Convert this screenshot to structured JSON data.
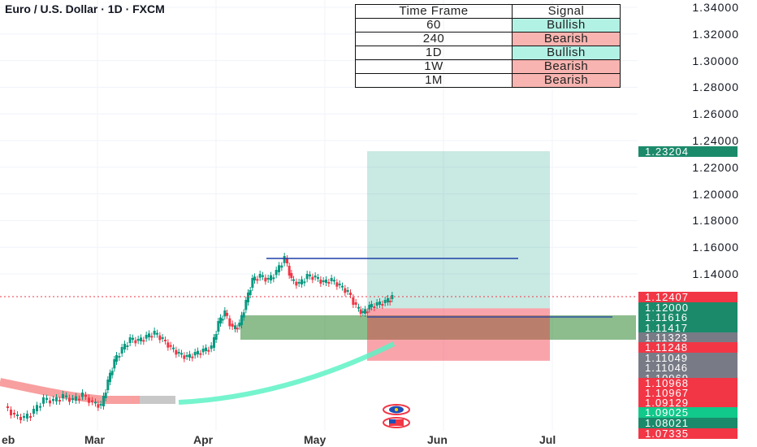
{
  "header": {
    "title": "Euro / U.S. Dollar · 1D · FXCM"
  },
  "signal_table": {
    "headers": [
      "Time Frame",
      "Signal"
    ],
    "rows": [
      {
        "tf": "60",
        "signal": "Bullish",
        "color": "#b2f2e5"
      },
      {
        "tf": "240",
        "signal": "Bearish",
        "color": "#f8b4b0"
      },
      {
        "tf": "1D",
        "signal": "Bullish",
        "color": "#b2f2e5"
      },
      {
        "tf": "1W",
        "signal": "Bearish",
        "color": "#f8b4b0"
      },
      {
        "tf": "1M",
        "signal": "Bearish",
        "color": "#f8b4b0"
      }
    ]
  },
  "price_axis": {
    "ticks": [
      "1.34000",
      "1.32000",
      "1.30000",
      "1.28000",
      "1.26000",
      "1.24000",
      "1.22000",
      "1.20000",
      "1.18000",
      "1.16000",
      "1.14000"
    ],
    "tags": [
      {
        "text": "1.23204",
        "color": "#1b8a6b"
      },
      {
        "text": "1.12407",
        "color": "#f23645"
      },
      {
        "text": "1.12000",
        "color": "#1b8a6b"
      },
      {
        "text": "1.11616",
        "color": "#1b8a6b"
      },
      {
        "text": "1.11417",
        "color": "#1b8a6b"
      },
      {
        "text": "1.11323",
        "color": "#787b86"
      },
      {
        "text": "1.11248",
        "color": "#f23645"
      },
      {
        "text": "1.11049",
        "color": "#787b86"
      },
      {
        "text": "1.11046",
        "color": "#787b86"
      },
      {
        "text": "1.10969",
        "color": "#787b86"
      },
      {
        "text": "1.10968",
        "color": "#f23645"
      },
      {
        "text": "1.10967",
        "color": "#f23645"
      },
      {
        "text": "1.09129",
        "color": "#f23645"
      },
      {
        "text": "1.09025",
        "color": "#11c98a"
      },
      {
        "text": "1.08021",
        "color": "#1b8a6b"
      },
      {
        "text": "1.07335",
        "color": "#f23645"
      }
    ]
  },
  "time_axis": {
    "labels": [
      "eb",
      "Mar",
      "Apr",
      "May",
      "Jun",
      "Jul"
    ]
  },
  "chart_data": {
    "type": "candlestick",
    "title": "Euro / U.S. Dollar · 1D · FXCM",
    "x_labels": [
      "eb",
      "Mar",
      "Apr",
      "May",
      "Jun",
      "Jul"
    ],
    "y_ticks": [
      1.14,
      1.16,
      1.18,
      1.2,
      1.22,
      1.24,
      1.26,
      1.28,
      1.3,
      1.32,
      1.34
    ],
    "last_price": 1.12407,
    "take_profit": 1.23204,
    "entry": 1.11417,
    "stop_loss": 1.09129,
    "resistance_level": 1.15129,
    "up_color": "#089981",
    "down_color": "#f23645"
  }
}
